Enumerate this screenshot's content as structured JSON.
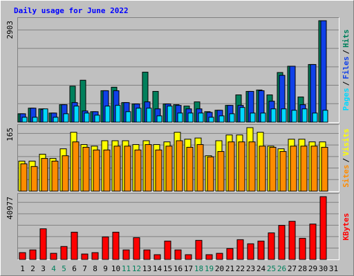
{
  "title": "Daily usage for June 2022",
  "legend_separator": "/",
  "categories": [
    "1",
    "2",
    "3",
    "4",
    "5",
    "6",
    "7",
    "8",
    "9",
    "10",
    "11",
    "12",
    "13",
    "14",
    "15",
    "16",
    "17",
    "18",
    "19",
    "20",
    "21",
    "22",
    "23",
    "24",
    "25",
    "26",
    "27",
    "28",
    "29",
    "30",
    "31"
  ],
  "category_colors": [
    "#000000",
    "#000000",
    "#000000",
    "#00805c",
    "#00805c",
    "#000000",
    "#000000",
    "#000000",
    "#000000",
    "#000000",
    "#00805c",
    "#00805c",
    "#000000",
    "#000000",
    "#000000",
    "#000000",
    "#000000",
    "#00805c",
    "#00805c",
    "#000000",
    "#000000",
    "#000000",
    "#000000",
    "#000000",
    "#00805c",
    "#00805c",
    "#000000",
    "#000000",
    "#000000",
    "#000000",
    "#000000"
  ],
  "chart_data": [
    {
      "type": "bar",
      "ylim": [
        0,
        2903
      ],
      "yticks": [
        2903
      ],
      "grid": true,
      "series": [
        {
          "name": "Hits",
          "color": "#00805c",
          "values": [
            240,
            400,
            380,
            260,
            500,
            1030,
            1200,
            300,
            900,
            1000,
            560,
            520,
            1430,
            880,
            520,
            500,
            460,
            580,
            300,
            340,
            480,
            780,
            880,
            920,
            780,
            1420,
            1600,
            720,
            1650,
            2903,
            0
          ]
        },
        {
          "name": "Files",
          "color": "#1040e8",
          "values": [
            240,
            400,
            360,
            260,
            500,
            560,
            320,
            300,
            900,
            900,
            560,
            520,
            580,
            380,
            520,
            480,
            380,
            380,
            280,
            340,
            480,
            480,
            880,
            900,
            600,
            1340,
            1600,
            500,
            1650,
            2903,
            0
          ]
        },
        {
          "name": "Pages",
          "color": "#00d8ff",
          "values": [
            140,
            140,
            380,
            140,
            240,
            460,
            260,
            200,
            460,
            480,
            300,
            400,
            400,
            180,
            460,
            260,
            260,
            260,
            140,
            180,
            240,
            420,
            260,
            260,
            380,
            380,
            340,
            380,
            260,
            340,
            0
          ]
        }
      ]
    },
    {
      "type": "bar",
      "ylim": [
        0,
        165
      ],
      "yticks": [
        165
      ],
      "grid": true,
      "series": [
        {
          "name": "Visits",
          "color": "#ffff00",
          "values": [
            78,
            78,
            96,
            85,
            110,
            153,
            121,
            117,
            131,
            131,
            131,
            121,
            131,
            121,
            128,
            153,
            135,
            138,
            92,
            131,
            146,
            146,
            165,
            153,
            117,
            110,
            135,
            135,
            128,
            128,
            0
          ]
        },
        {
          "name": "Sites",
          "color": "#ff8c00",
          "values": [
            71,
            64,
            85,
            78,
            92,
            128,
            114,
            107,
            107,
            117,
            117,
            107,
            121,
            107,
            117,
            131,
            114,
            121,
            89,
            103,
            128,
            128,
            128,
            117,
            114,
            103,
            117,
            117,
            117,
            114,
            0
          ]
        }
      ]
    },
    {
      "type": "bar",
      "ylim": [
        0,
        40977
      ],
      "yticks": [
        40977
      ],
      "grid": true,
      "series": [
        {
          "name": "KBytes",
          "color": "#ff0000",
          "values": [
            4450,
            6230,
            20000,
            4000,
            8450,
            17800,
            3560,
            4450,
            14700,
            17800,
            6230,
            14240,
            6230,
            3110,
            12000,
            6230,
            3110,
            12460,
            3110,
            4000,
            7120,
            12900,
            10230,
            12000,
            17350,
            22250,
            24900,
            13800,
            23100,
            40977,
            0
          ]
        }
      ]
    }
  ]
}
